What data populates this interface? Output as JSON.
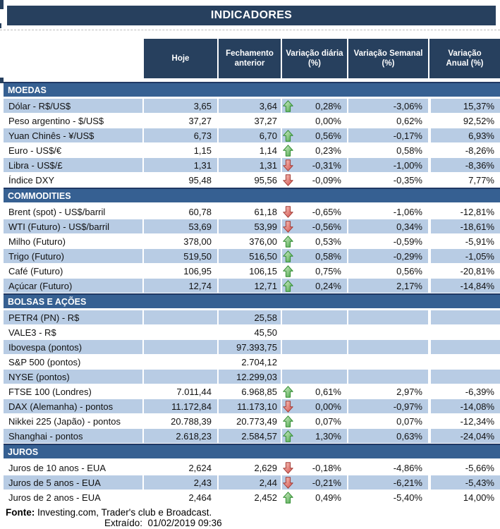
{
  "title": "INDICADORES",
  "columns": [
    {
      "line1": "Hoje",
      "line2": ""
    },
    {
      "line1": "Fechamento",
      "line2": "anterior"
    },
    {
      "line1": "Variação diária",
      "line2": "(%)"
    },
    {
      "line1": "Variação Semanal",
      "line2": "(%)"
    },
    {
      "line1": "Variação",
      "line2": "Anual (%)"
    }
  ],
  "sections": [
    {
      "label": "MOEDAS",
      "first_row_shaded": true,
      "rows": [
        {
          "label": "Dólar - R$/US$",
          "hoje": "3,65",
          "fechamento": "3,64",
          "arrow": "up",
          "diaria": "0,28%",
          "semanal": "-3,06%",
          "anual": "15,37%"
        },
        {
          "label": "Peso argentino - $/US$",
          "hoje": "37,27",
          "fechamento": "37,27",
          "arrow": "none",
          "diaria": "0,00%",
          "semanal": "0,62%",
          "anual": "92,52%"
        },
        {
          "label": "Yuan Chinês - ¥/US$",
          "hoje": "6,73",
          "fechamento": "6,70",
          "arrow": "up",
          "diaria": "0,56%",
          "semanal": "-0,17%",
          "anual": "6,93%"
        },
        {
          "label": "Euro - US$/€",
          "hoje": "1,15",
          "fechamento": "1,14",
          "arrow": "up",
          "diaria": "0,23%",
          "semanal": "0,58%",
          "anual": "-8,26%"
        },
        {
          "label": "Libra - US$/£",
          "hoje": "1,31",
          "fechamento": "1,31",
          "arrow": "down",
          "diaria": "-0,31%",
          "semanal": "-1,00%",
          "anual": "-8,36%"
        },
        {
          "label": "Índice DXY",
          "hoje": "95,48",
          "fechamento": "95,56",
          "arrow": "down",
          "diaria": "-0,09%",
          "semanal": "-0,35%",
          "anual": "7,77%"
        }
      ]
    },
    {
      "label": "COMMODITIES",
      "first_row_shaded": false,
      "rows": [
        {
          "label": "Brent (spot) - US$/barril",
          "hoje": "60,78",
          "fechamento": "61,18",
          "arrow": "down",
          "diaria": "-0,65%",
          "semanal": "-1,06%",
          "anual": "-12,81%"
        },
        {
          "label": "WTI (Futuro) - US$/barril",
          "hoje": "53,69",
          "fechamento": "53,99",
          "arrow": "down",
          "diaria": "-0,56%",
          "semanal": "0,34%",
          "anual": "-18,61%"
        },
        {
          "label": "Milho (Futuro)",
          "hoje": "378,00",
          "fechamento": "376,00",
          "arrow": "up",
          "diaria": "0,53%",
          "semanal": "-0,59%",
          "anual": "-5,91%"
        },
        {
          "label": "Trigo (Futuro)",
          "hoje": "519,50",
          "fechamento": "516,50",
          "arrow": "up",
          "diaria": "0,58%",
          "semanal": "-0,29%",
          "anual": "-1,05%"
        },
        {
          "label": "Café (Futuro)",
          "hoje": "106,95",
          "fechamento": "106,15",
          "arrow": "up",
          "diaria": "0,75%",
          "semanal": "0,56%",
          "anual": "-20,81%"
        },
        {
          "label": "Açúcar (Futuro)",
          "hoje": "12,74",
          "fechamento": "12,71",
          "arrow": "up",
          "diaria": "0,24%",
          "semanal": "2,17%",
          "anual": "-14,84%"
        }
      ]
    },
    {
      "label": "BOLSAS E AÇÕES",
      "first_row_shaded": true,
      "rows": [
        {
          "label": "PETR4 (PN) - R$",
          "hoje": "",
          "fechamento": "25,58",
          "arrow": "none",
          "diaria": "",
          "semanal": "",
          "anual": ""
        },
        {
          "label": "VALE3 - R$",
          "hoje": "",
          "fechamento": "45,50",
          "arrow": "none",
          "diaria": "",
          "semanal": "",
          "anual": ""
        },
        {
          "label": "Ibovespa (pontos)",
          "hoje": "",
          "fechamento": "97.393,75",
          "arrow": "none",
          "diaria": "",
          "semanal": "",
          "anual": ""
        },
        {
          "label": "S&P 500 (pontos)",
          "hoje": "",
          "fechamento": "2.704,12",
          "arrow": "none",
          "diaria": "",
          "semanal": "",
          "anual": ""
        },
        {
          "label": "NYSE (pontos)",
          "hoje": "",
          "fechamento": "12.299,03",
          "arrow": "none",
          "diaria": "",
          "semanal": "",
          "anual": ""
        },
        {
          "label": "FTSE 100 (Londres)",
          "hoje": "7.011,44",
          "fechamento": "6.968,85",
          "arrow": "up",
          "diaria": "0,61%",
          "semanal": "2,97%",
          "anual": "-6,39%"
        },
        {
          "label": "DAX (Alemanha) - pontos",
          "hoje": "11.172,84",
          "fechamento": "11.173,10",
          "arrow": "down",
          "diaria": "0,00%",
          "semanal": "-0,97%",
          "anual": "-14,08%"
        },
        {
          "label": "Nikkei 225 (Japão) - pontos",
          "hoje": "20.788,39",
          "fechamento": "20.773,49",
          "arrow": "up",
          "diaria": "0,07%",
          "semanal": "0,07%",
          "anual": "-12,34%"
        },
        {
          "label": "Shanghai - pontos",
          "hoje": "2.618,23",
          "fechamento": "2.584,57",
          "arrow": "up",
          "diaria": "1,30%",
          "semanal": "0,63%",
          "anual": "-24,04%"
        }
      ]
    },
    {
      "label": "JUROS",
      "first_row_shaded": false,
      "rows": [
        {
          "label": "Juros de 10 anos - EUA",
          "hoje": "2,624",
          "fechamento": "2,629",
          "arrow": "down",
          "diaria": "-0,18%",
          "semanal": "-4,86%",
          "anual": "-5,66%"
        },
        {
          "label": "Juros de 5 anos - EUA",
          "hoje": "2,43",
          "fechamento": "2,44",
          "arrow": "down",
          "diaria": "-0,21%",
          "semanal": "-6,21%",
          "anual": "-5,43%"
        },
        {
          "label": "Juros de 2 anos - EUA",
          "hoje": "2,464",
          "fechamento": "2,452",
          "arrow": "up",
          "diaria": "0,49%",
          "semanal": "-5,40%",
          "anual": "14,00%"
        }
      ]
    }
  ],
  "footer": {
    "fonte_label": "Fonte:",
    "fonte_text": " Investing.com, Trader's club e Broadcast.",
    "extraido": "Extraído:  01/02/2019 09:36"
  },
  "colors": {
    "header_navy": "#27405E",
    "section_blue": "#366092",
    "section_border": "#1F3864",
    "row_shaded": "#B8CCE4",
    "row_white": "#FFFFFF",
    "arrow_up_fill": "#4CA64C",
    "arrow_up_stroke": "#2E8B2E",
    "arrow_down_fill": "#D34F4A",
    "arrow_down_stroke": "#A23B35"
  }
}
